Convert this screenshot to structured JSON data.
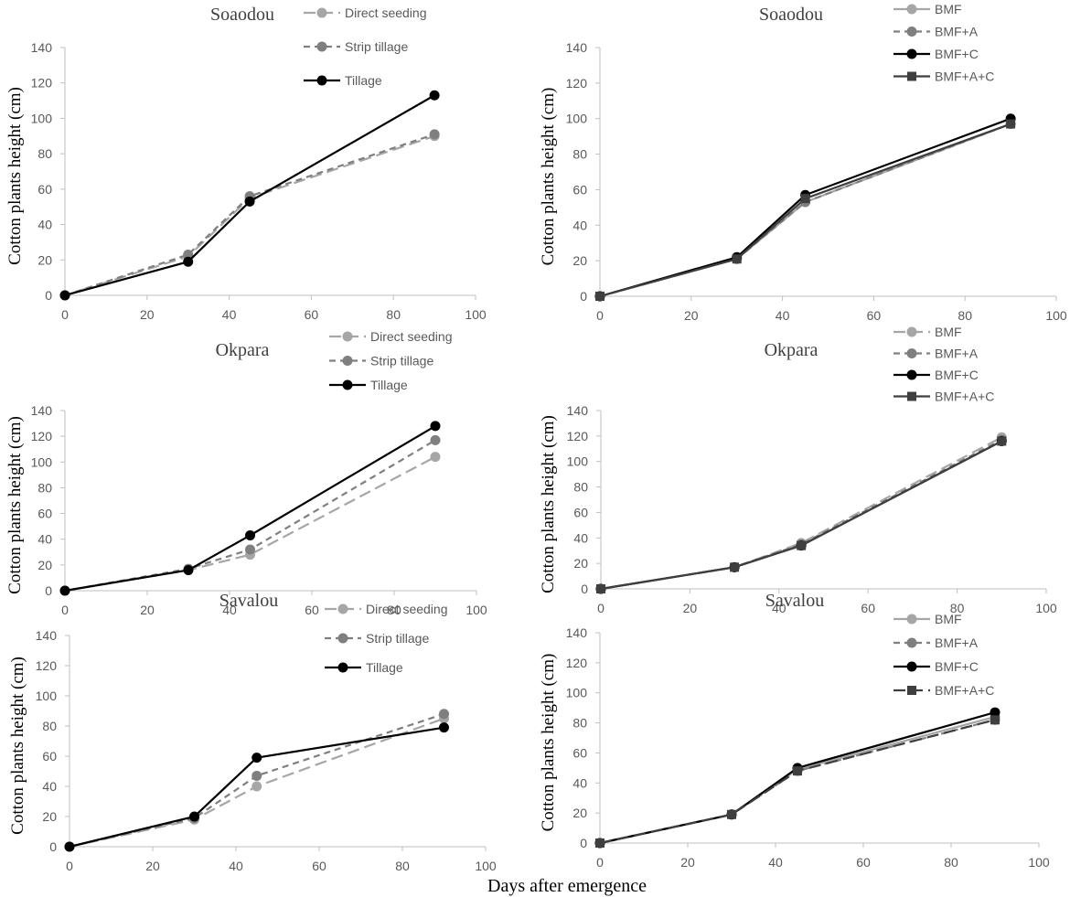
{
  "figure": {
    "xlabel": "Days after emergence"
  },
  "colors": {
    "direct_seeding": "#a6a6a6",
    "strip_tillage": "#7f7f7f",
    "tillage": "#000000",
    "bmf": "#a6a6a6",
    "bmf_a": "#7f7f7f",
    "bmf_c": "#000000",
    "bmf_a_c": "#3f3f3f",
    "axis": "#bfbfbf",
    "tick_text": "#595959"
  },
  "chart_data": [
    {
      "type": "line",
      "title": "Soaodou",
      "ylabel": "Cotton plants height (cm)",
      "xlabel": "",
      "x": [
        0,
        30,
        45,
        90
      ],
      "xlim": [
        0,
        100
      ],
      "ylim": [
        0,
        140
      ],
      "xticks": [
        0,
        20,
        40,
        60,
        80,
        100
      ],
      "yticks": [
        0,
        20,
        40,
        60,
        80,
        100,
        120,
        140
      ],
      "series": [
        {
          "name": "Direct seeding",
          "values": [
            0,
            22,
            55,
            90
          ],
          "color_key": "direct_seeding",
          "dash": "long",
          "marker": "circle"
        },
        {
          "name": "Strip tillage",
          "values": [
            0,
            23,
            56,
            91
          ],
          "color_key": "strip_tillage",
          "dash": "medium",
          "marker": "circle"
        },
        {
          "name": "Tillage",
          "values": [
            0,
            19,
            53,
            113
          ],
          "color_key": "tillage",
          "dash": "solid",
          "marker": "circle"
        }
      ]
    },
    {
      "type": "line",
      "title": "Soaodou",
      "ylabel": "Cotton plants height (cm)",
      "xlabel": "",
      "x": [
        0,
        30,
        45,
        90
      ],
      "xlim": [
        0,
        100
      ],
      "ylim": [
        0,
        140
      ],
      "xticks": [
        0,
        20,
        40,
        60,
        80,
        100
      ],
      "yticks": [
        0,
        20,
        40,
        60,
        80,
        100,
        120,
        140
      ],
      "series": [
        {
          "name": "BMF",
          "values": [
            0,
            21,
            53,
            97
          ],
          "color_key": "bmf",
          "dash": "solid",
          "marker": "circle"
        },
        {
          "name": "BMF+A",
          "values": [
            0,
            21,
            53,
            97
          ],
          "color_key": "bmf_a",
          "dash": "medium",
          "marker": "circle"
        },
        {
          "name": "BMF+C",
          "values": [
            0,
            22,
            57,
            100
          ],
          "color_key": "bmf_c",
          "dash": "solid",
          "marker": "circle"
        },
        {
          "name": "BMF+A+C",
          "values": [
            0,
            21,
            55,
            97
          ],
          "color_key": "bmf_a_c",
          "dash": "solid",
          "marker": "square"
        }
      ]
    },
    {
      "type": "line",
      "title": "Okpara",
      "ylabel": "Cotton plants height (cm)",
      "xlabel": "",
      "x": [
        0,
        30,
        45,
        90
      ],
      "xlim": [
        0,
        100
      ],
      "ylim": [
        0,
        140
      ],
      "xticks": [
        0,
        20,
        40,
        60,
        80,
        100
      ],
      "yticks": [
        0,
        20,
        40,
        60,
        80,
        100,
        120,
        140
      ],
      "series": [
        {
          "name": "Direct seeding",
          "values": [
            0,
            16,
            28,
            104
          ],
          "color_key": "direct_seeding",
          "dash": "long",
          "marker": "circle"
        },
        {
          "name": "Strip tillage",
          "values": [
            0,
            17,
            32,
            117
          ],
          "color_key": "strip_tillage",
          "dash": "medium",
          "marker": "circle"
        },
        {
          "name": "Tillage",
          "values": [
            0,
            16,
            43,
            128
          ],
          "color_key": "tillage",
          "dash": "solid",
          "marker": "circle"
        }
      ]
    },
    {
      "type": "line",
      "title": "Okpara",
      "ylabel": "Cotton plants height (cm)",
      "xlabel": "",
      "x": [
        0,
        30,
        45,
        90
      ],
      "xlim": [
        0,
        100
      ],
      "ylim": [
        0,
        140
      ],
      "xticks": [
        0,
        20,
        40,
        60,
        80,
        100
      ],
      "yticks": [
        0,
        20,
        40,
        60,
        80,
        100,
        120,
        140
      ],
      "series": [
        {
          "name": "BMF",
          "values": [
            0,
            17,
            36,
            119
          ],
          "color_key": "bmf",
          "dash": "long",
          "marker": "circle"
        },
        {
          "name": "BMF+A",
          "values": [
            0,
            17,
            35,
            117
          ],
          "color_key": "bmf_a",
          "dash": "medium",
          "marker": "circle"
        },
        {
          "name": "BMF+C",
          "values": [
            0,
            17,
            34,
            116
          ],
          "color_key": "bmf_c",
          "dash": "solid",
          "marker": "circle"
        },
        {
          "name": "BMF+A+C",
          "values": [
            0,
            17,
            34,
            116
          ],
          "color_key": "bmf_a_c",
          "dash": "solid",
          "marker": "square"
        }
      ]
    },
    {
      "type": "line",
      "title": "Savalou",
      "ylabel": "Cotton plants height (cm)",
      "xlabel": "",
      "x": [
        0,
        30,
        45,
        90
      ],
      "xlim": [
        0,
        100
      ],
      "ylim": [
        0,
        140
      ],
      "xticks": [
        0,
        20,
        40,
        60,
        80,
        100
      ],
      "yticks": [
        0,
        20,
        40,
        60,
        80,
        100,
        120,
        140
      ],
      "series": [
        {
          "name": "Direct seeding",
          "values": [
            0,
            18,
            40,
            85
          ],
          "color_key": "direct_seeding",
          "dash": "long",
          "marker": "circle"
        },
        {
          "name": "Strip tillage",
          "values": [
            0,
            19,
            47,
            88
          ],
          "color_key": "strip_tillage",
          "dash": "medium",
          "marker": "circle"
        },
        {
          "name": "Tillage",
          "values": [
            0,
            20,
            59,
            79
          ],
          "color_key": "tillage",
          "dash": "solid",
          "marker": "circle"
        }
      ]
    },
    {
      "type": "line",
      "title": "Savalou",
      "ylabel": "Cotton plants height (cm)",
      "xlabel": "",
      "x": [
        0,
        30,
        45,
        90
      ],
      "xlim": [
        0,
        100
      ],
      "ylim": [
        0,
        140
      ],
      "xticks": [
        0,
        20,
        40,
        60,
        80,
        100
      ],
      "yticks": [
        0,
        20,
        40,
        60,
        80,
        100,
        120,
        140
      ],
      "series": [
        {
          "name": "BMF",
          "values": [
            0,
            19,
            49,
            84
          ],
          "color_key": "bmf",
          "dash": "solid",
          "marker": "circle"
        },
        {
          "name": "BMF+A",
          "values": [
            0,
            19,
            48,
            82
          ],
          "color_key": "bmf_a",
          "dash": "medium",
          "marker": "circle"
        },
        {
          "name": "BMF+C",
          "values": [
            0,
            19,
            50,
            87
          ],
          "color_key": "bmf_c",
          "dash": "solid",
          "marker": "circle"
        },
        {
          "name": "BMF+A+C",
          "values": [
            0,
            19,
            48,
            82
          ],
          "color_key": "bmf_a_c",
          "dash": "long",
          "marker": "square"
        }
      ]
    }
  ]
}
